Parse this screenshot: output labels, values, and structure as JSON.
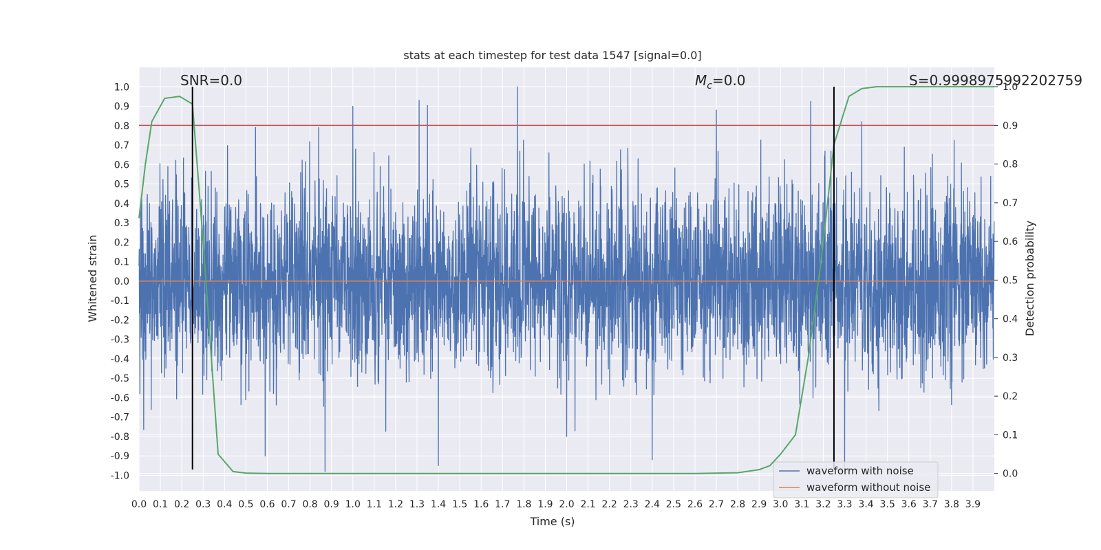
{
  "chart_data": {
    "type": "line",
    "title": "stats at each timestep for test data 1547 [signal=0.0]",
    "xlabel": "Time (s)",
    "ylabel": "Whitened strain",
    "y2label": "Detection probability",
    "xlim": [
      0.0,
      4.0
    ],
    "ylim": [
      -1.08,
      1.1
    ],
    "y2lim": [
      -0.045,
      1.05
    ],
    "xticks": [
      "0.0",
      "0.1",
      "0.2",
      "0.3",
      "0.4",
      "0.5",
      "0.6",
      "0.7",
      "0.8",
      "0.9",
      "1.0",
      "1.1",
      "1.2",
      "1.3",
      "1.4",
      "1.5",
      "1.6",
      "1.7",
      "1.8",
      "1.9",
      "2.0",
      "2.1",
      "2.2",
      "2.3",
      "2.4",
      "2.5",
      "2.6",
      "2.7",
      "2.8",
      "2.9",
      "3.0",
      "3.1",
      "3.2",
      "3.3",
      "3.4",
      "3.5",
      "3.6",
      "3.7",
      "3.8",
      "3.9"
    ],
    "yticks": [
      "-1.0",
      "-0.9",
      "-0.8",
      "-0.7",
      "-0.6",
      "-0.5",
      "-0.4",
      "-0.3",
      "-0.2",
      "-0.1",
      "0.0",
      "0.1",
      "0.2",
      "0.3",
      "0.4",
      "0.5",
      "0.6",
      "0.7",
      "0.8",
      "0.9",
      "1.0"
    ],
    "y2ticks": [
      "0.0",
      "0.1",
      "0.2",
      "0.3",
      "0.4",
      "0.5",
      "0.6",
      "0.7",
      "0.8",
      "0.9",
      "1.0"
    ],
    "annotations": {
      "snr": "SNR=0.0",
      "mc": "=0.0",
      "mc_symbol": "M",
      "mc_sub": "c",
      "s": "S=0.9998975992202759"
    },
    "legend": {
      "position": "lower-right",
      "entries": [
        "waveform with noise",
        "waveform without noise"
      ]
    },
    "series": [
      {
        "name": "waveform with noise",
        "color": "#4c72b0",
        "description": "dense whitened noise in the -1.0 to 1.0 range",
        "peak_markers": [
          {
            "x": 1.77,
            "y": 1.0
          },
          {
            "x": 1.0,
            "y": 0.9
          },
          {
            "x": 1.31,
            "y": 0.93
          },
          {
            "x": 2.7,
            "y": 0.88
          },
          {
            "x": 0.84,
            "y": 0.79
          },
          {
            "x": 3.38,
            "y": 0.82
          },
          {
            "x": 0.87,
            "y": -0.98
          },
          {
            "x": 1.4,
            "y": -0.95
          },
          {
            "x": 2.4,
            "y": -0.92
          },
          {
            "x": 3.3,
            "y": -0.97
          },
          {
            "x": 0.59,
            "y": -0.9
          },
          {
            "x": 2.0,
            "y": -0.8
          }
        ]
      },
      {
        "name": "waveform without noise",
        "color": "#dd8452",
        "x": [
          0.0,
          4.0
        ],
        "y": [
          0.0,
          0.0
        ]
      },
      {
        "name": "detection probability",
        "axis": "right",
        "color": "#55a868",
        "x": [
          0.0,
          0.03,
          0.06,
          0.12,
          0.19,
          0.25,
          0.3,
          0.37,
          0.44,
          0.5,
          0.6,
          1.0,
          2.0,
          2.6,
          2.8,
          2.9,
          2.95,
          3.0,
          3.07,
          3.13,
          3.19,
          3.25,
          3.32,
          3.38,
          3.45,
          3.6,
          4.0
        ],
        "y": [
          0.66,
          0.8,
          0.91,
          0.97,
          0.975,
          0.955,
          0.6,
          0.05,
          0.005,
          0.001,
          0.0,
          0.0,
          0.0,
          0.0,
          0.002,
          0.01,
          0.02,
          0.05,
          0.1,
          0.3,
          0.55,
          0.85,
          0.975,
          0.995,
          1.0,
          1.0,
          1.0
        ]
      }
    ],
    "threshold": {
      "axis": "right",
      "value": 0.9,
      "color": "#c44e52"
    },
    "vlines": [
      {
        "x": 0.25,
        "ymin": -0.97,
        "ymax": 1.0,
        "color": "#000000"
      },
      {
        "x": 3.25,
        "ymin": -0.97,
        "ymax": 1.0,
        "color": "#000000"
      }
    ],
    "grid": true,
    "background": "#eaeaf2"
  }
}
